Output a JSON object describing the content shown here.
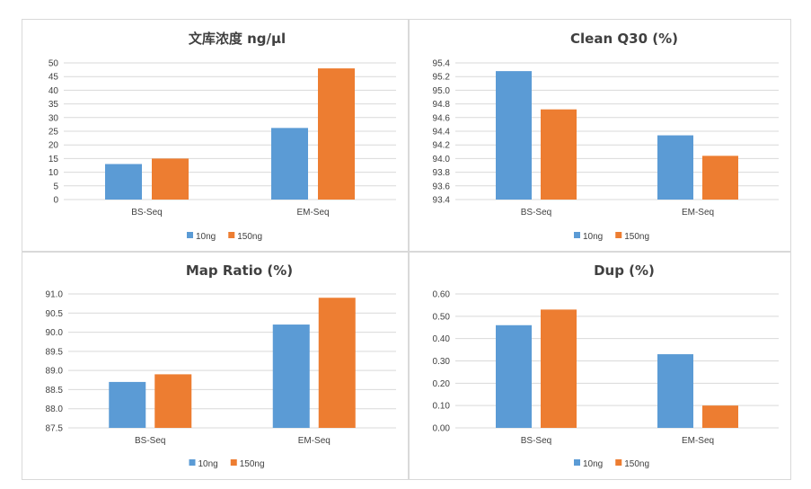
{
  "colors": {
    "series_10ng": "#5b9bd5",
    "series_150ng": "#ed7d31"
  },
  "chart_data": [
    {
      "type": "bar",
      "title": "文库浓度 ng/µl",
      "categories": [
        "BS-Seq",
        "EM-Seq"
      ],
      "series": [
        {
          "name": "10ng",
          "values": [
            13.0,
            26.2
          ]
        },
        {
          "name": "150ng",
          "values": [
            15.0,
            48.0
          ]
        }
      ],
      "ylim": [
        0,
        50
      ],
      "yticks": [
        "0",
        "5",
        "10",
        "15",
        "20",
        "25",
        "30",
        "35",
        "40",
        "45",
        "50"
      ],
      "grid": true,
      "legend_position": "bottom"
    },
    {
      "type": "bar",
      "title": "Clean Q30 (%)",
      "categories": [
        "BS-Seq",
        "EM-Seq"
      ],
      "series": [
        {
          "name": "10ng",
          "values": [
            95.28,
            94.34
          ]
        },
        {
          "name": "150ng",
          "values": [
            94.72,
            94.04
          ]
        }
      ],
      "ylim": [
        93.4,
        95.4
      ],
      "yticks": [
        "93.4",
        "93.6",
        "93.8",
        "94.0",
        "94.2",
        "94.4",
        "94.6",
        "94.8",
        "95.0",
        "95.2",
        "95.4"
      ],
      "grid": true,
      "legend_position": "bottom"
    },
    {
      "type": "bar",
      "title": "Map Ratio (%)",
      "categories": [
        "BS-Seq",
        "EM-Seq"
      ],
      "series": [
        {
          "name": "10ng",
          "values": [
            88.7,
            90.2
          ]
        },
        {
          "name": "150ng",
          "values": [
            88.9,
            90.9
          ]
        }
      ],
      "ylim": [
        87.5,
        91.0
      ],
      "yticks": [
        "87.5",
        "88.0",
        "88.5",
        "89.0",
        "89.5",
        "90.0",
        "90.5",
        "91.0"
      ],
      "grid": true,
      "legend_position": "bottom"
    },
    {
      "type": "bar",
      "title": "Dup (%)",
      "categories": [
        "BS-Seq",
        "EM-Seq"
      ],
      "series": [
        {
          "name": "10ng",
          "values": [
            0.46,
            0.33
          ]
        },
        {
          "name": "150ng",
          "values": [
            0.53,
            0.1
          ]
        }
      ],
      "ylim": [
        0,
        0.6
      ],
      "yticks": [
        "0.00",
        "0.10",
        "0.20",
        "0.30",
        "0.40",
        "0.50",
        "0.60"
      ],
      "grid": true,
      "legend_position": "bottom"
    }
  ]
}
